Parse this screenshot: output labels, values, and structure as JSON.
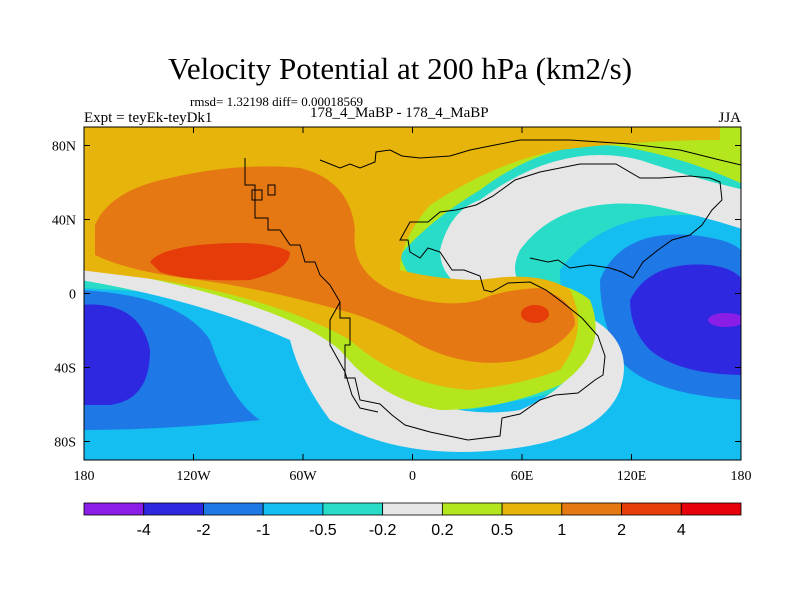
{
  "header": {
    "title": "Velocity Potential at 200 hPa (km2/s)",
    "stats": "rmsd= 1.32198 diff= 0.00018569",
    "expt": "Expt = teyEk-teyDk1",
    "runs": "178_4_MaBP - 178_4_MaBP",
    "season": "JJA"
  },
  "chart_data": {
    "type": "heatmap",
    "title": "Velocity Potential at 200 hPa (km2/s)",
    "subtitle": "178_4_MaBP - 178_4_MaBP",
    "season": "JJA",
    "units": "km2/s",
    "xlabel": "",
    "ylabel": "",
    "xlim": [
      -180,
      180
    ],
    "ylim": [
      -90,
      90
    ],
    "x_ticks": [
      {
        "value": -180,
        "label": "180"
      },
      {
        "value": -120,
        "label": "120W"
      },
      {
        "value": -60,
        "label": "60W"
      },
      {
        "value": 0,
        "label": "0"
      },
      {
        "value": 60,
        "label": "60E"
      },
      {
        "value": 120,
        "label": "120E"
      },
      {
        "value": 180,
        "label": "180"
      }
    ],
    "y_ticks": [
      {
        "value": 80,
        "label": "80N"
      },
      {
        "value": 40,
        "label": "40N"
      },
      {
        "value": 0,
        "label": "0"
      },
      {
        "value": -40,
        "label": "40S"
      },
      {
        "value": -80,
        "label": "80S"
      }
    ],
    "levels": [
      -4,
      -2,
      -1,
      -0.5,
      -0.2,
      0.2,
      0.5,
      1,
      2,
      4
    ],
    "level_labels": [
      "-4",
      "-2",
      "-1",
      "-0.5",
      "-0.2",
      "0.2",
      "0.5",
      "1",
      "2",
      "4"
    ],
    "colors": [
      "#8b1ee6",
      "#2e28e0",
      "#1e78e6",
      "#14bef0",
      "#28dcc8",
      "#e6e6e6",
      "#b4e61e",
      "#e6b40a",
      "#e67814",
      "#e63c0a",
      "#e6000a"
    ],
    "features": [
      {
        "name": "max-north-pacific",
        "lon": -115,
        "lat": 25,
        "value": ">2"
      },
      {
        "name": "max-central-asia",
        "lon": 63,
        "lat": -10,
        "value": ">2"
      },
      {
        "name": "min-south-pacific",
        "lon": -175,
        "lat": -20,
        "value": "<-2"
      },
      {
        "name": "min-western-pacific",
        "lon": 175,
        "lat": -15,
        "value": "<-4"
      }
    ]
  }
}
